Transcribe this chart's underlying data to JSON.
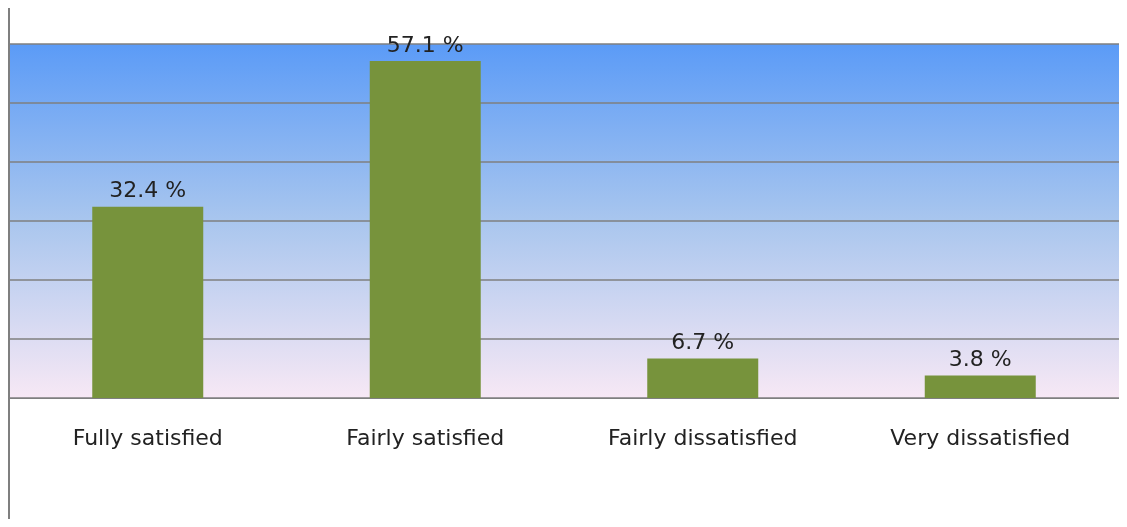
{
  "chart_data": {
    "type": "bar",
    "categories": [
      "Fully satisfied",
      "Fairly satisfied",
      "Fairly dissatisfied",
      "Very dissatisfied"
    ],
    "values": [
      32.4,
      57.1,
      6.7,
      3.8
    ],
    "value_labels": [
      "32.4 %",
      "57.1 %",
      "6.7 %",
      "3.8 %"
    ],
    "color": "#77933c",
    "ylim": [
      0,
      60
    ],
    "yticks": [
      {
        "value": 0,
        "label": null
      },
      {
        "value": 10,
        "label": null
      },
      {
        "value": 20,
        "label": null
      },
      {
        "value": 30,
        "label": null
      },
      {
        "value": 40,
        "label": null
      },
      {
        "value": 50,
        "label": null
      },
      {
        "value": 60,
        "label": null
      }
    ],
    "tick_labels": "x",
    "grid": "y"
  }
}
